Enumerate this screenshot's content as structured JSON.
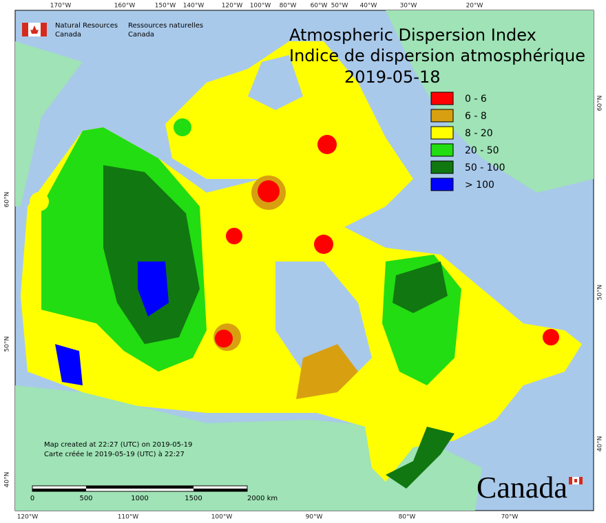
{
  "header": {
    "title_en": "Atmospheric Dispersion Index",
    "title_fr": "Indice de dispersion atmosphérique",
    "date": "2019-05-18"
  },
  "agency": {
    "en": [
      "Natural Resources",
      "Canada"
    ],
    "fr": [
      "Ressources naturelles",
      "Canada"
    ]
  },
  "legend": [
    {
      "label": "0 - 6",
      "color": "#ff0000"
    },
    {
      "label": "6 - 8",
      "color": "#d8a010"
    },
    {
      "label": "8 - 20",
      "color": "#ffff00"
    },
    {
      "label": "20 - 50",
      "color": "#22dd11"
    },
    {
      "label": "50 - 100",
      "color": "#117711"
    },
    {
      "label": "> 100",
      "color": "#0000ff"
    }
  ],
  "credits": [
    "Map created at 22:27 (UTC) on 2019-05-19",
    "Carte créée le 2019-05-19 (UTC) à 22:27"
  ],
  "scale_bar": [
    "0",
    "500",
    "1000",
    "1500",
    "2000  km"
  ],
  "graticule": {
    "top": [
      "170°W",
      "160°W",
      "150°W",
      "140°W",
      "120°W",
      "100°W",
      "80°W",
      "60°W",
      "50°W",
      "40°W",
      "30°W",
      "20°W"
    ],
    "bottom": [
      "120°W",
      "110°W",
      "100°W",
      "90°W",
      "80°W",
      "70°W"
    ],
    "left": [
      "60°N",
      "50°N",
      "40°N"
    ],
    "right": [
      "60°N",
      "50°N",
      "40°N"
    ]
  },
  "wordmark": "Canada"
}
